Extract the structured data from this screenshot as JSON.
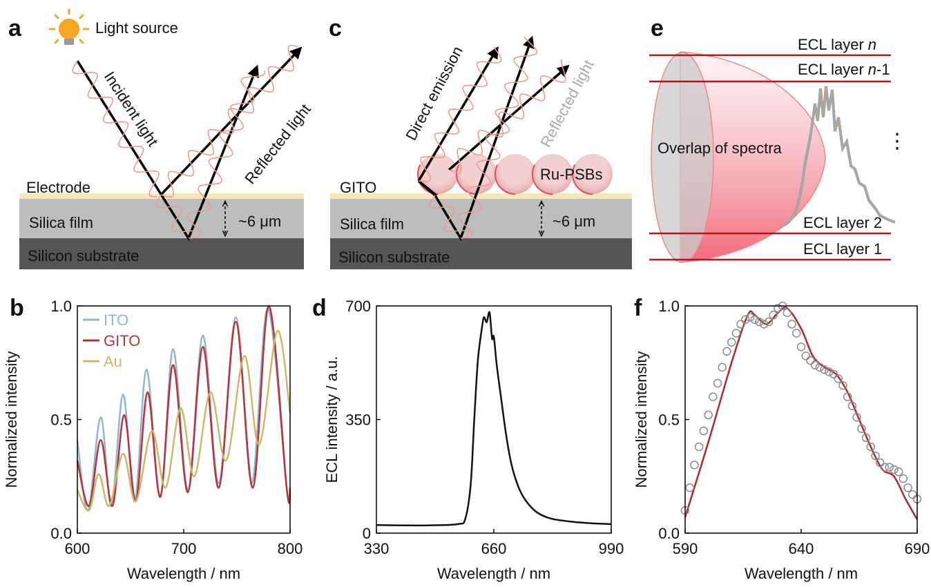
{
  "diagram_a": {
    "label": "a",
    "light_source": "Light source",
    "incident": "Incident light",
    "reflected": "Reflected light",
    "electrode": "Electrode",
    "silica": "Silica film",
    "substrate": "Silicon substrate",
    "thickness": "~6 μm"
  },
  "diagram_c": {
    "label": "c",
    "direct": "Direct emission",
    "reflected": "Reflected light",
    "particles": "Ru-PSBs",
    "electrode": "GITO",
    "silica": "Silica film",
    "substrate": "Silicon substrate",
    "thickness": "~6 μm"
  },
  "diagram_e": {
    "label": "e",
    "overlap": "Overlap of spectra",
    "ellipsis": "⋮",
    "layers": [
      {
        "prefix": "ECL layer",
        "italic": "n"
      },
      {
        "prefix": "ECL layer",
        "italic": "n",
        "suffix": "-1"
      },
      {
        "prefix": "ECL layer 2"
      },
      {
        "prefix": "ECL layer 1"
      }
    ]
  },
  "chart_data": [
    {
      "type": "line",
      "panel_label": "b",
      "x_label": "Wavelength / nm",
      "y_label": "Normalized intensity",
      "xlim": [
        600,
        800
      ],
      "xticks": [
        600,
        700,
        800
      ],
      "ylim": [
        0,
        1
      ],
      "yticks": [
        {
          "value": 0,
          "label": "0.0"
        },
        {
          "value": 0.5,
          "label": "0.5"
        },
        {
          "value": 1,
          "label": "1.0"
        }
      ],
      "legend": "upper left",
      "series": [
        {
          "name": "ITO",
          "color": "#8fb8c6",
          "x": [
            600,
            610,
            622,
            632,
            643,
            654,
            665,
            678,
            690,
            704,
            718,
            733,
            749,
            764,
            779,
            797,
            800
          ],
          "values": [
            0.41,
            0.1,
            0.51,
            0.12,
            0.61,
            0.14,
            0.72,
            0.16,
            0.81,
            0.19,
            0.87,
            0.22,
            0.95,
            0.22,
            0.99,
            0.19,
            0.2
          ]
        },
        {
          "name": "GITO",
          "color": "#b8323c",
          "x": [
            600,
            611,
            622,
            633,
            644,
            655,
            666,
            678,
            690,
            704,
            718,
            733,
            749,
            765,
            780,
            797,
            800
          ],
          "values": [
            0.32,
            0.12,
            0.41,
            0.12,
            0.52,
            0.14,
            0.62,
            0.16,
            0.74,
            0.18,
            0.82,
            0.2,
            0.93,
            0.2,
            1.0,
            0.19,
            0.2
          ]
        },
        {
          "name": "Au",
          "color": "#cdb766",
          "x": [
            600,
            611,
            620,
            630,
            643,
            655,
            670,
            683,
            697,
            710,
            725,
            740,
            757,
            771,
            788,
            800
          ],
          "values": [
            0.19,
            0.1,
            0.26,
            0.12,
            0.35,
            0.14,
            0.45,
            0.2,
            0.55,
            0.25,
            0.62,
            0.32,
            0.78,
            0.39,
            0.89,
            0.53
          ]
        }
      ]
    },
    {
      "type": "line",
      "panel_label": "d",
      "x_label": "Wavelength / nm",
      "y_label": "ECL  intensity / a.u.",
      "xlim": [
        330,
        990
      ],
      "xticks": [
        330,
        660,
        990
      ],
      "ylim": [
        0,
        700
      ],
      "yticks": [
        0,
        350,
        700
      ],
      "series": [
        {
          "color": "#111111",
          "x": [
            330,
            400,
            480,
            560,
            580,
            595,
            605,
            615,
            625,
            632,
            640,
            648,
            655,
            660,
            668,
            680,
            695,
            710,
            730,
            750,
            780,
            820,
            880,
            940,
            990
          ],
          "values": [
            25,
            24,
            24,
            28,
            45,
            150,
            350,
            530,
            620,
            665,
            650,
            680,
            600,
            605,
            520,
            420,
            300,
            210,
            140,
            100,
            65,
            45,
            35,
            30,
            28
          ]
        }
      ]
    },
    {
      "type": "line",
      "panel_label": "f",
      "x_label": "Wavelength / nm",
      "y_label": "Normalized intensity",
      "xlim": [
        590,
        690
      ],
      "xticks": [
        590,
        640,
        690
      ],
      "ylim": [
        0,
        1
      ],
      "yticks": [
        {
          "value": 0,
          "label": "0.0"
        },
        {
          "value": 0.5,
          "label": "0.5"
        },
        {
          "value": 1,
          "label": "1.0"
        }
      ],
      "series": [
        {
          "color": "#b02630",
          "x": [
            590,
            600,
            610,
            617,
            620,
            625,
            630,
            634,
            640,
            645,
            650,
            655,
            660,
            665,
            670,
            675,
            680,
            685,
            690
          ],
          "values": [
            0.07,
            0.4,
            0.75,
            0.96,
            0.96,
            0.92,
            0.97,
            0.99,
            0.9,
            0.78,
            0.73,
            0.7,
            0.62,
            0.5,
            0.38,
            0.28,
            0.25,
            0.15,
            0.06
          ]
        },
        {
          "color": "#8a8a8a",
          "marker": "circle",
          "x": [
            590,
            592,
            594,
            596,
            598,
            600,
            602,
            604,
            606,
            608,
            610,
            612,
            614,
            616,
            618,
            620,
            622,
            624,
            626,
            628,
            630,
            632,
            634,
            636,
            638,
            640,
            642,
            644,
            646,
            648,
            650,
            652,
            654,
            656,
            658,
            660,
            662,
            664,
            666,
            668,
            670,
            672,
            674,
            676,
            678,
            680,
            682,
            684,
            686,
            688,
            690
          ],
          "values": [
            0.1,
            0.2,
            0.3,
            0.38,
            0.45,
            0.52,
            0.6,
            0.66,
            0.73,
            0.8,
            0.84,
            0.88,
            0.92,
            0.94,
            0.95,
            0.94,
            0.93,
            0.92,
            0.93,
            0.96,
            0.99,
            1.0,
            0.97,
            0.92,
            0.88,
            0.82,
            0.78,
            0.76,
            0.74,
            0.73,
            0.72,
            0.71,
            0.7,
            0.68,
            0.65,
            0.6,
            0.56,
            0.51,
            0.46,
            0.42,
            0.38,
            0.34,
            0.31,
            0.29,
            0.29,
            0.28,
            0.27,
            0.24,
            0.2,
            0.17,
            0.15
          ]
        }
      ]
    }
  ]
}
